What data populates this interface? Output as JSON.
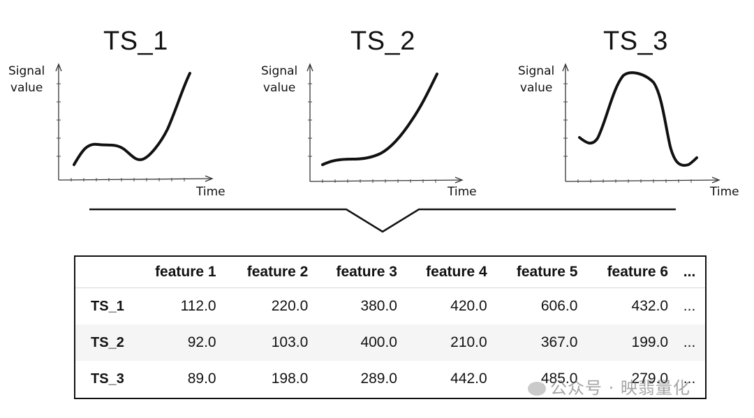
{
  "panels": [
    {
      "title": "TS_1",
      "ylabel_line1": "Signal",
      "ylabel_line2": "value",
      "xlabel": "Time"
    },
    {
      "title": "TS_2",
      "ylabel_line1": "Signal",
      "ylabel_line2": "value",
      "xlabel": "Time"
    },
    {
      "title": "TS_3",
      "ylabel_line1": "Signal",
      "ylabel_line2": "value",
      "xlabel": "Time"
    }
  ],
  "table": {
    "headers": [
      "",
      "feature 1",
      "feature 2",
      "feature 3",
      "feature 4",
      "feature 5",
      "feature 6",
      "..."
    ],
    "rows": [
      {
        "label": "TS_1",
        "cells": [
          "112.0",
          "220.0",
          "380.0",
          "420.0",
          "606.0",
          "432.0",
          "..."
        ]
      },
      {
        "label": "TS_2",
        "cells": [
          "92.0",
          "103.0",
          "400.0",
          "210.0",
          "367.0",
          "199.0",
          "..."
        ]
      },
      {
        "label": "TS_3",
        "cells": [
          "89.0",
          "198.0",
          "289.0",
          "442.0",
          "485.0",
          "279.0",
          "..."
        ]
      }
    ]
  },
  "watermark": {
    "text": "公众号 · 映翡量化"
  },
  "colors": {
    "line": "#111111",
    "row_alt": "#f5f5f5",
    "border": "#111111"
  }
}
